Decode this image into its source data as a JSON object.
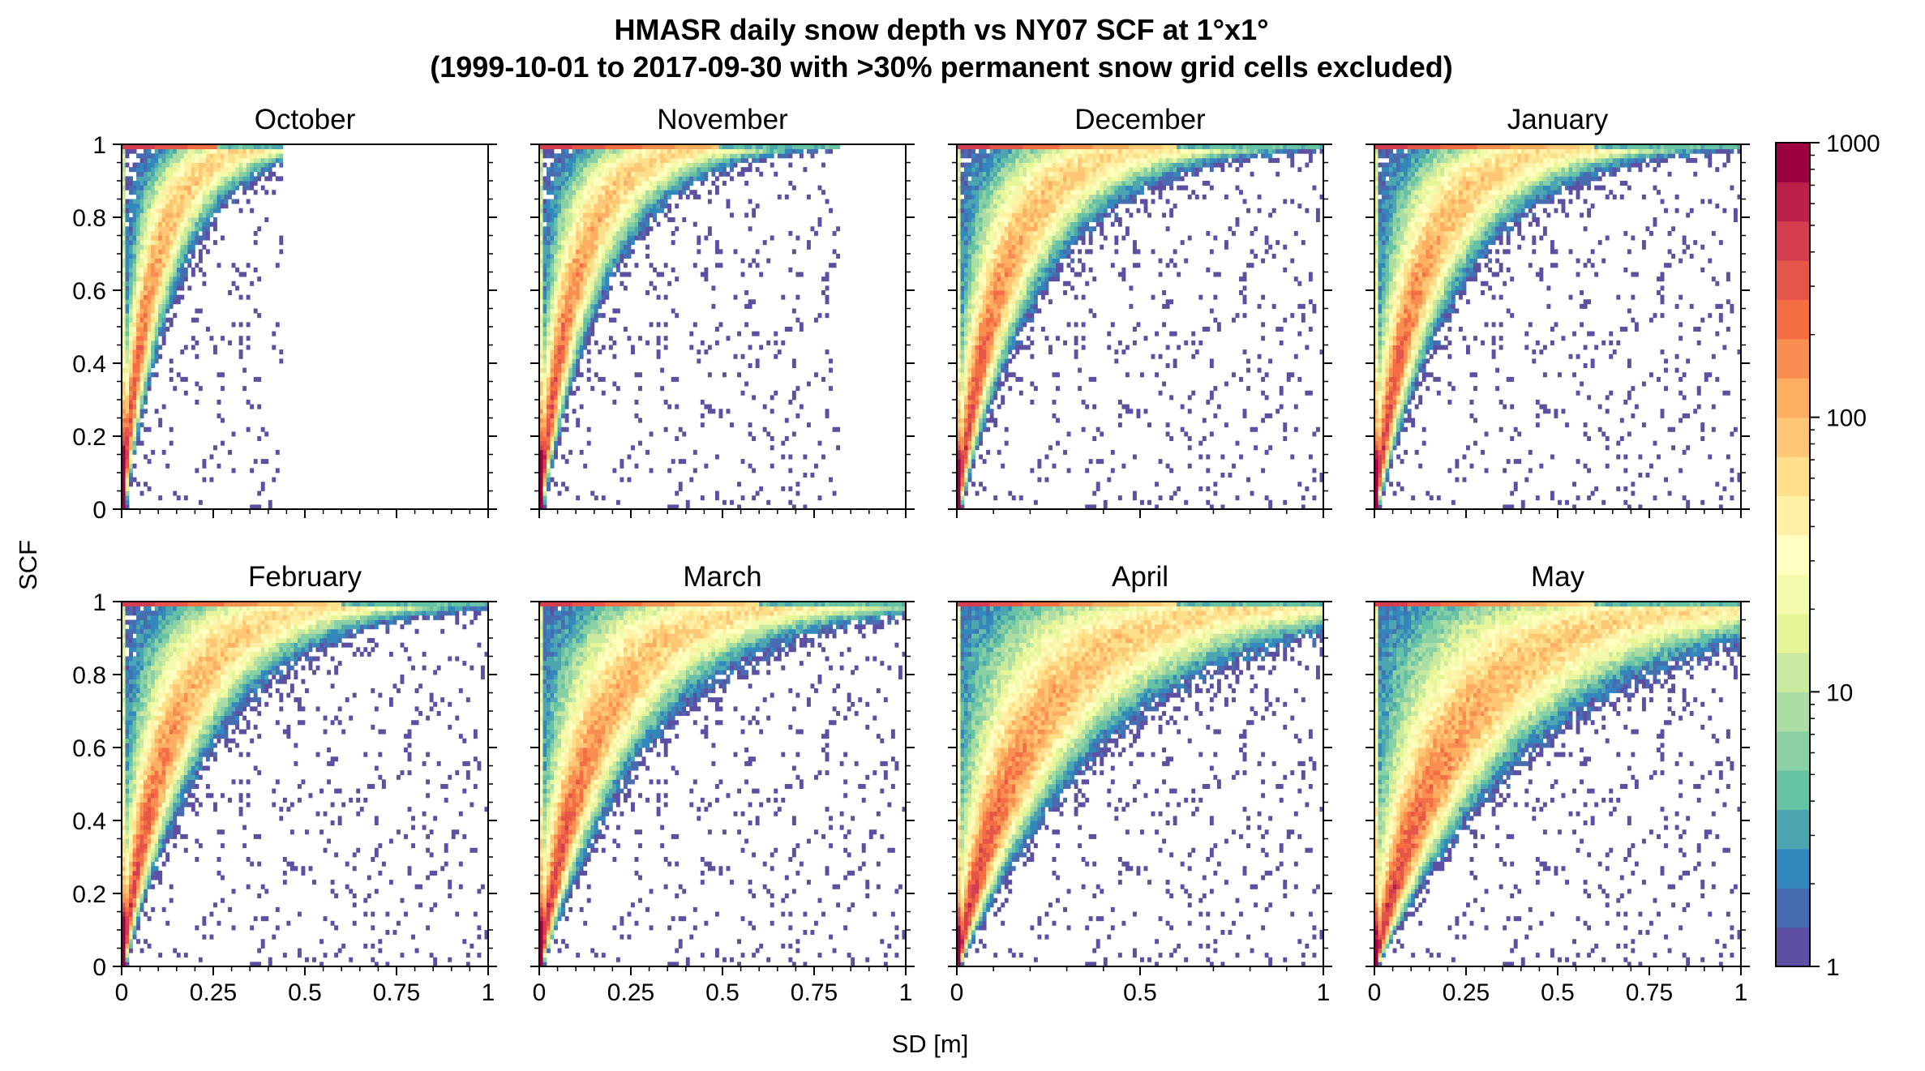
{
  "figure": {
    "title_line1": "HMASR daily snow depth vs NY07 SCF at 1°x1°",
    "title_line2": "(1999-10-01 to 2017-09-30 with >30% permanent snow grid cells excluded)",
    "xlabel": "SD [m]",
    "ylabel": "SCF"
  },
  "colorbar": {
    "scale": "log",
    "range": [
      1,
      1000
    ],
    "tick_labels": [
      "1",
      "10",
      "100",
      "1000"
    ],
    "tick_values": [
      1,
      10,
      100,
      1000
    ],
    "levels": 21,
    "colormap": [
      "#5e4fa2",
      "#3288bd",
      "#66c2a5",
      "#abdda4",
      "#e6f598",
      "#ffffbf",
      "#fee08b",
      "#fdae61",
      "#f46d43",
      "#d53e4f",
      "#9e0142"
    ]
  },
  "chart_data": [
    {
      "type": "heatmap",
      "title": "October",
      "xlim": [
        0,
        1
      ],
      "ylim": [
        0,
        1
      ],
      "x_ticks": [
        0,
        0.25,
        0.5,
        0.75,
        1
      ],
      "x_tick_labels": [
        "",
        "",
        "",
        "",
        ""
      ],
      "y_ticks": [
        0,
        0.2,
        0.4,
        0.6,
        0.8,
        1
      ],
      "y_tick_labels": [
        "0",
        "0.2",
        "0.4",
        "0.6",
        "0.8",
        "1"
      ],
      "curve_k": 12,
      "spread": 0.55,
      "x_extent_max": 0.44,
      "peak_count": 1000
    },
    {
      "type": "heatmap",
      "title": "November",
      "xlim": [
        0,
        1
      ],
      "ylim": [
        0,
        1
      ],
      "x_ticks": [
        0,
        0.25,
        0.5,
        0.75,
        1
      ],
      "x_tick_labels": [
        "",
        "",
        "",
        "",
        ""
      ],
      "y_ticks": [
        0,
        0.2,
        0.4,
        0.6,
        0.8,
        1
      ],
      "y_tick_labels": [
        "",
        "",
        "",
        "",
        "",
        ""
      ],
      "curve_k": 10,
      "spread": 0.6,
      "x_extent_max": 0.82,
      "peak_count": 1000
    },
    {
      "type": "heatmap",
      "title": "December",
      "xlim": [
        0,
        1
      ],
      "ylim": [
        0,
        1
      ],
      "x_ticks": [
        0,
        0.5,
        1
      ],
      "x_tick_labels": [
        "",
        "",
        ""
      ],
      "y_ticks": [
        0,
        0.2,
        0.4,
        0.6,
        0.8,
        1
      ],
      "y_tick_labels": [
        "",
        "",
        "",
        "",
        "",
        ""
      ],
      "curve_k": 8,
      "spread": 0.65,
      "x_extent_max": 1.0,
      "peak_count": 1000
    },
    {
      "type": "heatmap",
      "title": "January",
      "xlim": [
        0,
        1
      ],
      "ylim": [
        0,
        1
      ],
      "x_ticks": [
        0,
        0.25,
        0.5,
        0.75,
        1
      ],
      "x_tick_labels": [
        "",
        "",
        "",
        "",
        ""
      ],
      "y_ticks": [
        0,
        0.2,
        0.4,
        0.6,
        0.8,
        1
      ],
      "y_tick_labels": [
        "",
        "",
        "",
        "",
        "",
        ""
      ],
      "curve_k": 8,
      "spread": 0.65,
      "x_extent_max": 1.0,
      "peak_count": 1000
    },
    {
      "type": "heatmap",
      "title": "February",
      "xlim": [
        0,
        1
      ],
      "ylim": [
        0,
        1
      ],
      "x_ticks": [
        0,
        0.25,
        0.5,
        0.75,
        1
      ],
      "x_tick_labels": [
        "0",
        "0.25",
        "0.5",
        "0.75",
        "1"
      ],
      "y_ticks": [
        0,
        0.2,
        0.4,
        0.6,
        0.8,
        1
      ],
      "y_tick_labels": [
        "0",
        "0.2",
        "0.4",
        "0.6",
        "0.8",
        "1"
      ],
      "curve_k": 7.5,
      "spread": 0.65,
      "x_extent_max": 1.0,
      "peak_count": 1000
    },
    {
      "type": "heatmap",
      "title": "March",
      "xlim": [
        0,
        1
      ],
      "ylim": [
        0,
        1
      ],
      "x_ticks": [
        0,
        0.25,
        0.5,
        0.75,
        1
      ],
      "x_tick_labels": [
        "0",
        "0.25",
        "0.5",
        "0.75",
        "1"
      ],
      "y_ticks": [
        0,
        0.2,
        0.4,
        0.6,
        0.8,
        1
      ],
      "y_tick_labels": [
        "",
        "",
        "",
        "",
        "",
        ""
      ],
      "curve_k": 6.5,
      "spread": 0.7,
      "x_extent_max": 1.0,
      "peak_count": 1000
    },
    {
      "type": "heatmap",
      "title": "April",
      "xlim": [
        0,
        1
      ],
      "ylim": [
        0,
        1
      ],
      "x_ticks": [
        0,
        0.5,
        1
      ],
      "x_tick_labels": [
        "0",
        "0.5",
        "1"
      ],
      "y_ticks": [
        0,
        0.2,
        0.4,
        0.6,
        0.8,
        1
      ],
      "y_tick_labels": [
        "",
        "",
        "",
        "",
        "",
        ""
      ],
      "curve_k": 5,
      "spread": 0.75,
      "x_extent_max": 1.0,
      "peak_count": 1000
    },
    {
      "type": "heatmap",
      "title": "May",
      "xlim": [
        0,
        1
      ],
      "ylim": [
        0,
        1
      ],
      "x_ticks": [
        0,
        0.25,
        0.5,
        0.75,
        1
      ],
      "x_tick_labels": [
        "0",
        "0.25",
        "0.5",
        "0.75",
        "1"
      ],
      "y_ticks": [
        0,
        0.2,
        0.4,
        0.6,
        0.8,
        1
      ],
      "y_tick_labels": [
        "",
        "",
        "",
        "",
        "",
        ""
      ],
      "curve_k": 4.5,
      "spread": 0.75,
      "x_extent_max": 1.0,
      "peak_count": 1000
    }
  ]
}
